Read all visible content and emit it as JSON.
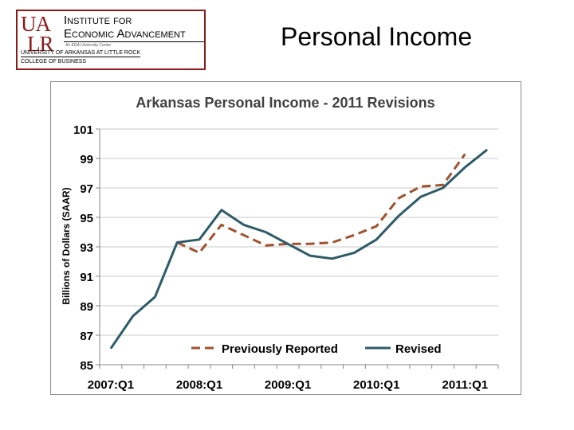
{
  "header": {
    "logo": {
      "mark_line1": "UA",
      "mark_line2": "LR",
      "line1": "Institute for",
      "line2": "Economic Advancement",
      "sub": "An EDA University Center",
      "uni": "University of Arkansas at Little Rock",
      "college": "College of Business"
    },
    "page_title": "Personal Income"
  },
  "chart_data": {
    "type": "line",
    "title": "Arkansas Personal Income - 2011 Revisions",
    "ylabel": "Billions of Dollars (SAAR)",
    "xlabel": "",
    "ylim": [
      85,
      101
    ],
    "yticks": [
      85,
      87,
      89,
      91,
      93,
      95,
      97,
      99,
      101
    ],
    "x": [
      "2007:Q1",
      "2007:Q2",
      "2007:Q3",
      "2007:Q4",
      "2008:Q1",
      "2008:Q2",
      "2008:Q3",
      "2008:Q4",
      "2009:Q1",
      "2009:Q2",
      "2009:Q3",
      "2009:Q4",
      "2010:Q1",
      "2010:Q2",
      "2010:Q3",
      "2010:Q4",
      "2011:Q1",
      "2011:Q2"
    ],
    "x_tick_labels": [
      "2007:Q1",
      "2008:Q1",
      "2009:Q1",
      "2010:Q1",
      "2011:Q1"
    ],
    "legend_position": "bottom",
    "series": [
      {
        "name": "Previously Reported",
        "style": "dashed",
        "color": "#a0522d",
        "values": [
          null,
          null,
          null,
          93.3,
          92.6,
          94.5,
          93.8,
          93.1,
          93.2,
          93.2,
          93.3,
          93.8,
          94.4,
          96.3,
          97.1,
          97.2,
          99.3,
          null
        ]
      },
      {
        "name": "Revised",
        "style": "solid",
        "color": "#2e5b68",
        "values": [
          86.1,
          88.3,
          89.6,
          93.3,
          93.5,
          95.5,
          94.5,
          94.0,
          93.2,
          92.4,
          92.2,
          92.6,
          93.5,
          95.1,
          96.4,
          97.0,
          98.4,
          99.6
        ]
      }
    ],
    "grid": "horizontal"
  }
}
